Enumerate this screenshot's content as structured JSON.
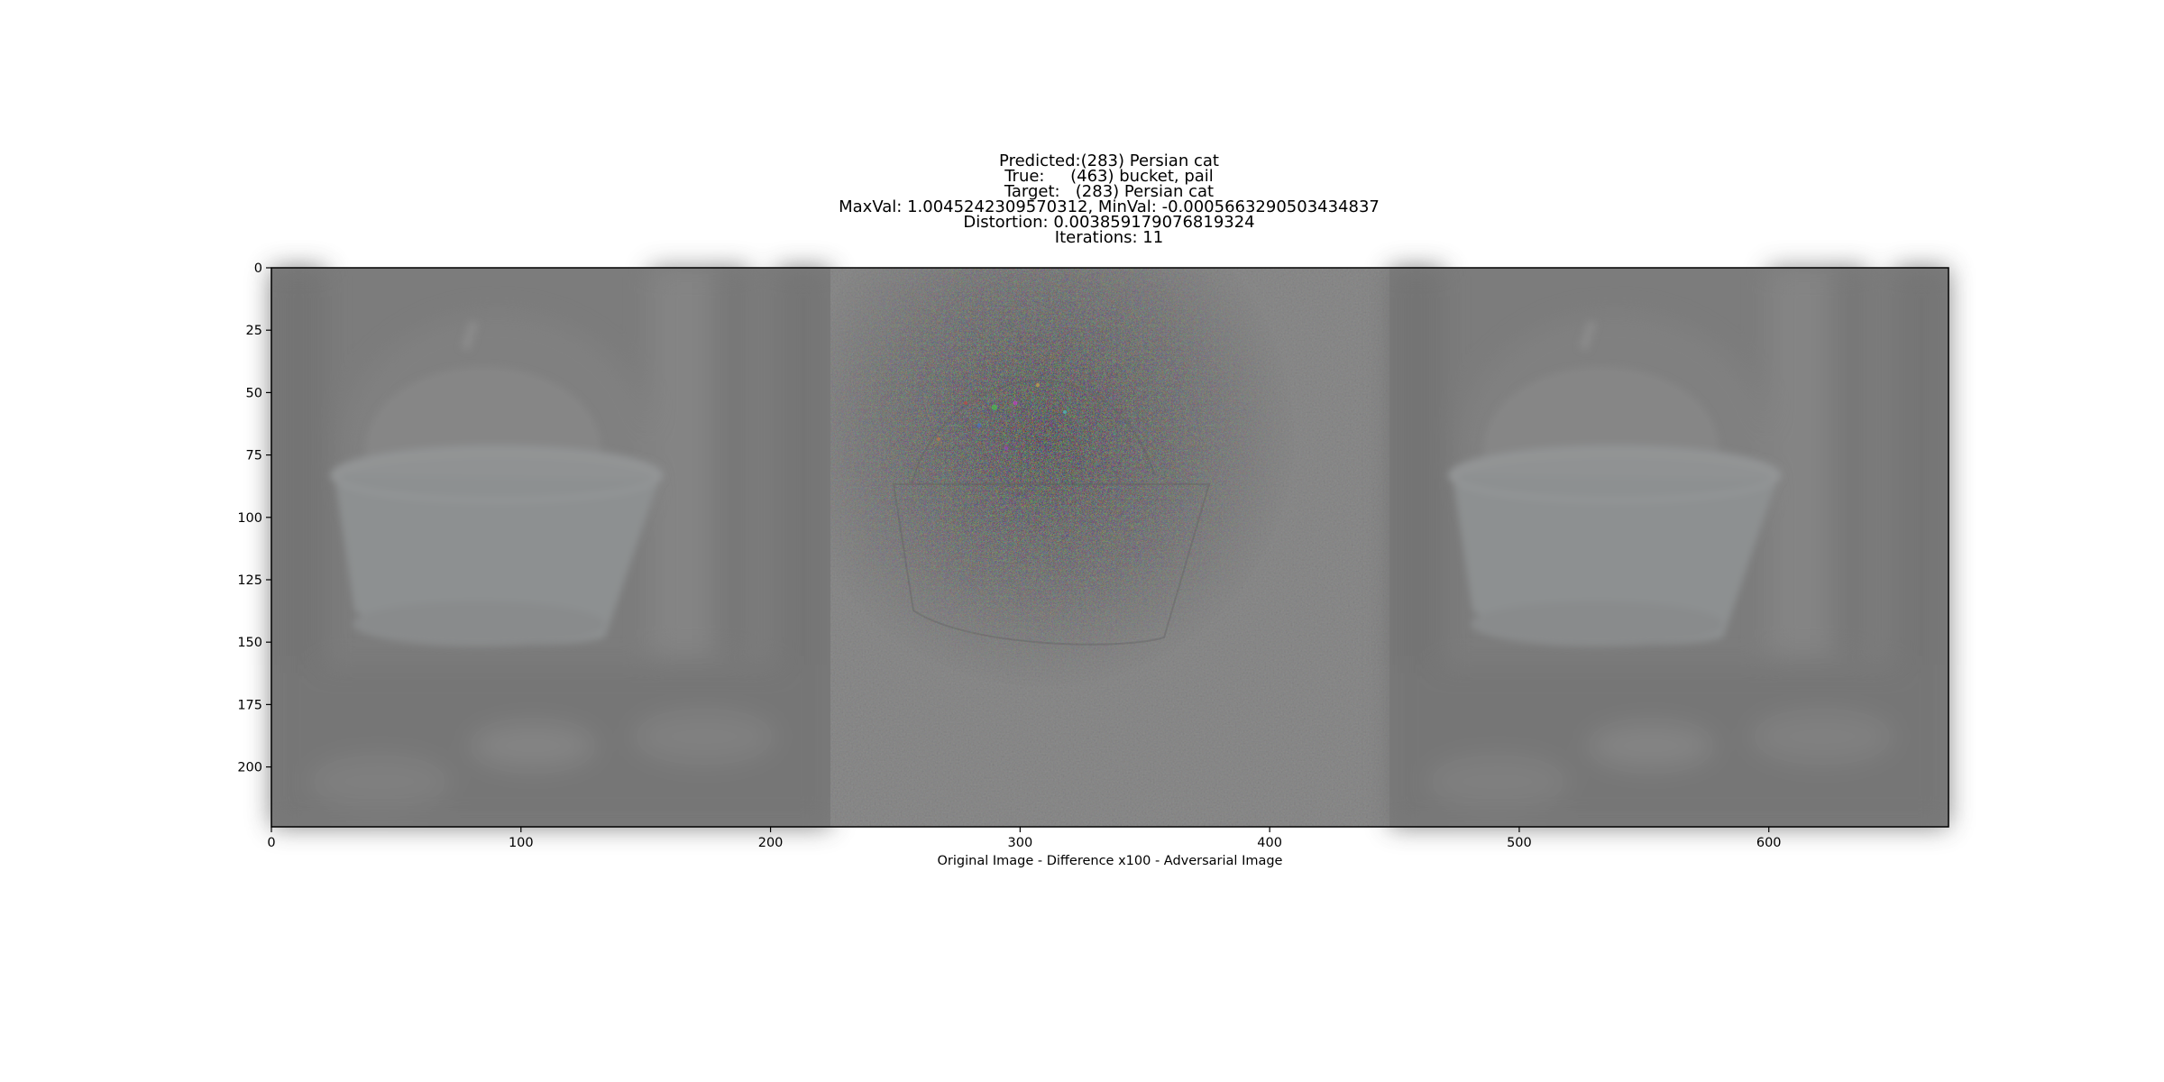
{
  "figure": {
    "title_lines": [
      "Predicted:(283) Persian cat",
      "True:     (463) bucket, pail",
      "Target:   (283) Persian cat",
      "MaxVal: 1.0045242309570312, MinVal: -0.0005663290503434837",
      "Distortion: 0.003859179076819324",
      "Iterations: 11"
    ],
    "xlabel": "Original Image - Difference x100 - Adversarial Image",
    "x_ticks": [
      0,
      100,
      200,
      300,
      400,
      500,
      600
    ],
    "y_ticks": [
      0,
      25,
      50,
      75,
      100,
      125,
      150,
      175,
      200
    ],
    "x_range": [
      0,
      672
    ],
    "y_range": [
      224,
      0
    ],
    "panels": [
      {
        "label": "Original Image",
        "x_start": 0,
        "x_end": 224,
        "content": "grey photo: white bucket held by a handle, blurred background"
      },
      {
        "label": "Difference x100",
        "x_start": 224,
        "x_end": 448,
        "content": "grey noise texture with colored speckles around the bucket outline"
      },
      {
        "label": "Adversarial Image",
        "x_start": 448,
        "x_end": 672,
        "content": "grey photo: white bucket held by a handle, blurred background"
      }
    ],
    "colors": {
      "photo_bg": "#7c7c7c",
      "noise_bg": "#7b7b7b",
      "bucket": "#8e9192",
      "frame": "#000000"
    }
  }
}
